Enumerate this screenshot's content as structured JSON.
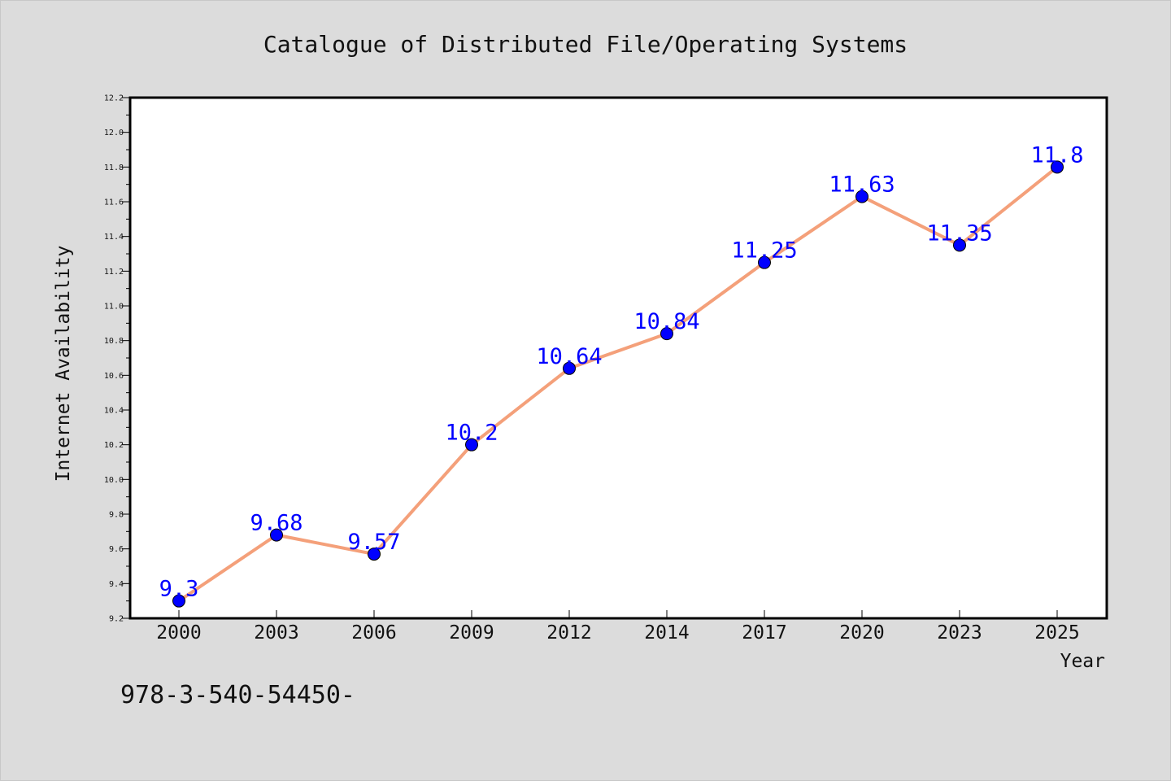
{
  "chart_data": {
    "type": "line",
    "title": "Catalogue of Distributed File/Operating Systems",
    "xlabel": "Year",
    "ylabel": "Internet Availability",
    "categories": [
      "2000",
      "2003",
      "2006",
      "2009",
      "2012",
      "2014",
      "2017",
      "2020",
      "2023",
      "2025"
    ],
    "series": [
      {
        "values": [
          9.3,
          9.68,
          9.57,
          10.2,
          10.64,
          10.84,
          11.25,
          11.63,
          11.35,
          11.8
        ],
        "labels": [
          "9.3",
          "9.68",
          "9.57",
          "10.2",
          "10.64",
          "10.84",
          "11.25",
          "11.63",
          "11.35",
          "11.8"
        ]
      }
    ],
    "ylim": [
      9.2,
      12.2
    ],
    "yticks": [
      "9.2",
      "9.4",
      "9.6",
      "9.8",
      "10.0",
      "10.2",
      "10.4",
      "10.6",
      "10.8",
      "11.0",
      "11.2",
      "11.4",
      "11.6",
      "11.8",
      "12.0",
      "12.2"
    ],
    "grid": false,
    "annotation": "978-3-540-54450-",
    "colors": {
      "line": "#f4a07a",
      "marker": "#0000ff",
      "data_label": "#0000ff",
      "background": "#dcdcdc",
      "plot_background": "#ffffff"
    }
  }
}
